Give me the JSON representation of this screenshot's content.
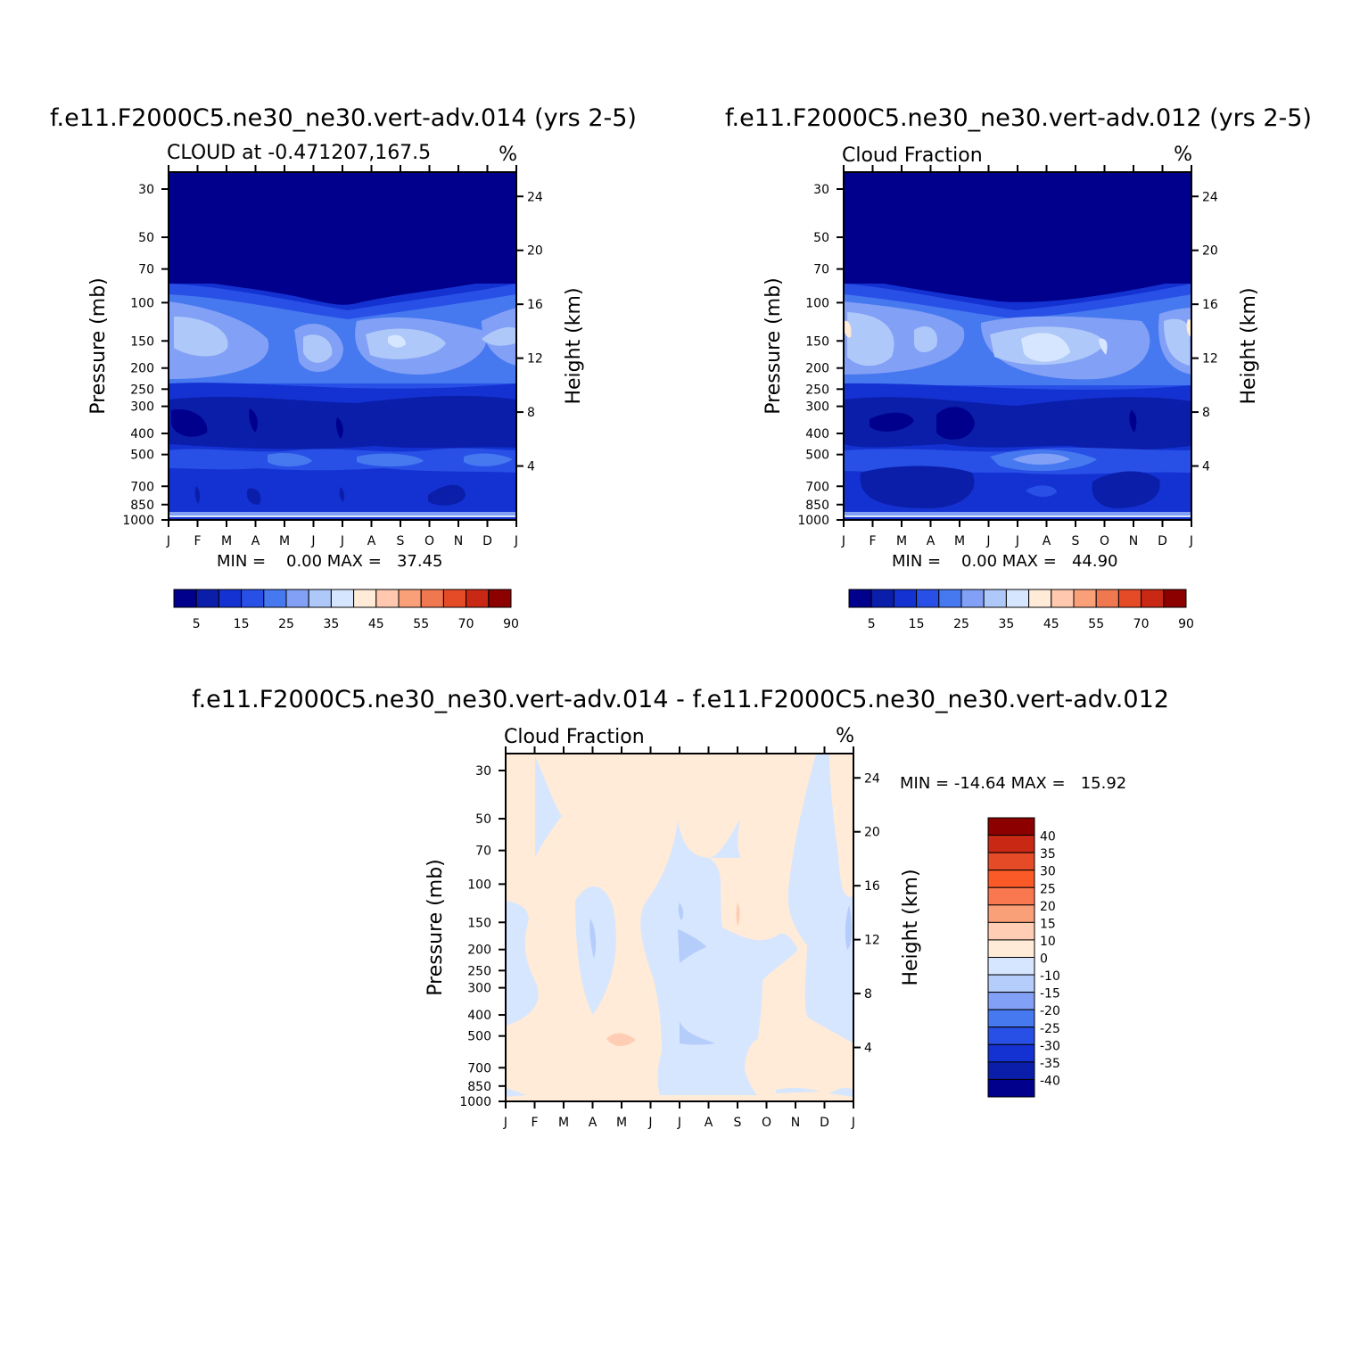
{
  "chart_data": [
    {
      "type": "heatmap",
      "title": "f.e11.F2000C5.ne30_ne30.vert-adv.014 (yrs 2-5)",
      "subtitle_left": "CLOUD at -0.471207,167.5",
      "subtitle_right": "%",
      "ylabel": "Pressure (mb)",
      "ylabel_right": "Height (km)",
      "x_ticks": [
        "J",
        "F",
        "M",
        "A",
        "M",
        "J",
        "J",
        "A",
        "S",
        "O",
        "N",
        "D",
        "J"
      ],
      "y_ticks": [
        "30",
        "50",
        "70",
        "100",
        "150",
        "200",
        "250",
        "300",
        "400",
        "500",
        "700",
        "850",
        "1000"
      ],
      "y_ticks_right": [
        "24",
        "20",
        "16",
        "12",
        "8",
        "4"
      ],
      "stats": "MIN =    0.00 MAX =   37.45",
      "min": 0.0,
      "max": 37.45,
      "colorbar_labels": [
        "5",
        "15",
        "25",
        "35",
        "45",
        "55",
        "70",
        "90"
      ],
      "colors": [
        "#00008c",
        "#0a1eaa",
        "#1432d2",
        "#2850e6",
        "#4678f0",
        "#82a0f5",
        "#afc8fa",
        "#d7e6ff",
        "#ffebd7",
        "#ffc8af",
        "#faa078",
        "#f07850",
        "#e64b28",
        "#c82814",
        "#8c0000"
      ]
    },
    {
      "type": "heatmap",
      "title": "f.e11.F2000C5.ne30_ne30.vert-adv.012 (yrs 2-5)",
      "subtitle_left": "Cloud Fraction",
      "subtitle_right": "%",
      "ylabel": "Pressure (mb)",
      "ylabel_right": "Height (km)",
      "x_ticks": [
        "J",
        "F",
        "M",
        "A",
        "M",
        "J",
        "J",
        "A",
        "S",
        "O",
        "N",
        "D",
        "J"
      ],
      "y_ticks": [
        "30",
        "50",
        "70",
        "100",
        "150",
        "200",
        "250",
        "300",
        "400",
        "500",
        "700",
        "850",
        "1000"
      ],
      "y_ticks_right": [
        "24",
        "20",
        "16",
        "12",
        "8",
        "4"
      ],
      "stats": "MIN =    0.00 MAX =   44.90",
      "min": 0.0,
      "max": 44.9,
      "colorbar_labels": [
        "5",
        "15",
        "25",
        "35",
        "45",
        "55",
        "70",
        "90"
      ],
      "colors": [
        "#00008c",
        "#0a1eaa",
        "#1432d2",
        "#2850e6",
        "#4678f0",
        "#82a0f5",
        "#afc8fa",
        "#d7e6ff",
        "#ffebd7",
        "#ffc8af",
        "#faa078",
        "#f07850",
        "#e64b28",
        "#c82814",
        "#8c0000"
      ]
    },
    {
      "type": "heatmap",
      "title": "f.e11.F2000C5.ne30_ne30.vert-adv.014 - f.e11.F2000C5.ne30_ne30.vert-adv.012",
      "subtitle_left": "Cloud Fraction",
      "subtitle_right": "%",
      "ylabel": "Pressure (mb)",
      "ylabel_right": "Height (km)",
      "x_ticks": [
        "J",
        "F",
        "M",
        "A",
        "M",
        "J",
        "J",
        "A",
        "S",
        "O",
        "N",
        "D",
        "J"
      ],
      "y_ticks": [
        "30",
        "50",
        "70",
        "100",
        "150",
        "200",
        "250",
        "300",
        "400",
        "500",
        "700",
        "850",
        "1000"
      ],
      "y_ticks_right": [
        "24",
        "20",
        "16",
        "12",
        "8",
        "4"
      ],
      "stats": "MIN = -14.64 MAX =   15.92",
      "min": -14.64,
      "max": 15.92,
      "colorbar_labels": [
        "40",
        "35",
        "30",
        "25",
        "20",
        "15",
        "10",
        "0",
        "-10",
        "-15",
        "-20",
        "-25",
        "-30",
        "-35",
        "-40"
      ],
      "colors": [
        "#8c0000",
        "#c82814",
        "#e64b28",
        "#fa5a28",
        "#fa7850",
        "#faa078",
        "#ffcdb4",
        "#ffebd7",
        "#d7e6ff",
        "#b4cdfa",
        "#82a0f5",
        "#4678f0",
        "#2850e6",
        "#1432d2",
        "#0a1eaa",
        "#00008c"
      ]
    }
  ]
}
